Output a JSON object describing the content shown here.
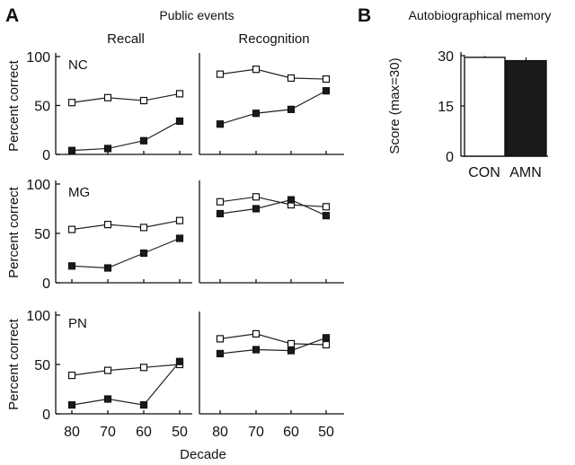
{
  "panel_a": {
    "label": "A",
    "title": "Public events",
    "col_titles": [
      "Recall",
      "Recognition"
    ],
    "ylabel": "Percent correct",
    "xlabel": "Decade"
  },
  "panel_b": {
    "label": "B",
    "title": "Autobiographical memory",
    "ylabel": "Score (max=30)"
  },
  "colors": {
    "open_marker": "#ffffff",
    "filled_marker": "#1a1a1a",
    "line": "#222222"
  },
  "chart_data": [
    {
      "type": "line",
      "id": "nc-recall",
      "row_label": "NC",
      "column": "Recall",
      "x": [
        "80",
        "70",
        "60",
        "50"
      ],
      "ylim": [
        0,
        100
      ],
      "yticks": [
        0,
        50,
        100
      ],
      "series": [
        {
          "marker": "open-square",
          "values": [
            53,
            58,
            55,
            62
          ]
        },
        {
          "marker": "filled-square",
          "values": [
            4,
            6,
            14,
            34
          ]
        }
      ]
    },
    {
      "type": "line",
      "id": "nc-recognition",
      "row_label": "",
      "column": "Recognition",
      "x": [
        "80",
        "70",
        "60",
        "50"
      ],
      "ylim": [
        0,
        100
      ],
      "series": [
        {
          "marker": "open-square",
          "values": [
            82,
            87,
            78,
            77
          ]
        },
        {
          "marker": "filled-square",
          "values": [
            31,
            42,
            46,
            65
          ]
        }
      ]
    },
    {
      "type": "line",
      "id": "mg-recall",
      "row_label": "MG",
      "column": "Recall",
      "x": [
        "80",
        "70",
        "60",
        "50"
      ],
      "ylim": [
        0,
        100
      ],
      "yticks": [
        0,
        50,
        100
      ],
      "series": [
        {
          "marker": "open-square",
          "values": [
            54,
            59,
            56,
            63
          ]
        },
        {
          "marker": "filled-square",
          "values": [
            17,
            15,
            30,
            45
          ]
        }
      ]
    },
    {
      "type": "line",
      "id": "mg-recognition",
      "row_label": "",
      "column": "Recognition",
      "x": [
        "80",
        "70",
        "60",
        "50"
      ],
      "ylim": [
        0,
        100
      ],
      "series": [
        {
          "marker": "open-square",
          "values": [
            82,
            87,
            79,
            77
          ]
        },
        {
          "marker": "filled-square",
          "values": [
            70,
            75,
            84,
            68
          ]
        }
      ]
    },
    {
      "type": "line",
      "id": "pn-recall",
      "row_label": "PN",
      "column": "Recall",
      "x": [
        "80",
        "70",
        "60",
        "50"
      ],
      "ylim": [
        0,
        100
      ],
      "yticks": [
        0,
        50,
        100
      ],
      "series": [
        {
          "marker": "open-square",
          "values": [
            39,
            44,
            47,
            50
          ]
        },
        {
          "marker": "filled-square",
          "values": [
            9,
            15,
            9,
            53
          ]
        }
      ]
    },
    {
      "type": "line",
      "id": "pn-recognition",
      "row_label": "",
      "column": "Recognition",
      "x": [
        "80",
        "70",
        "60",
        "50"
      ],
      "ylim": [
        0,
        100
      ],
      "series": [
        {
          "marker": "open-square",
          "values": [
            76,
            81,
            71,
            70
          ]
        },
        {
          "marker": "filled-square",
          "values": [
            61,
            65,
            64,
            77
          ]
        }
      ]
    },
    {
      "type": "bar",
      "id": "autobiographical-memory",
      "categories": [
        "CON",
        "AMN"
      ],
      "values": [
        29.5,
        28.5
      ],
      "error": [
        0.4,
        1.0
      ],
      "colors": [
        "#ffffff",
        "#1a1a1a"
      ],
      "ylim": [
        0,
        30
      ],
      "yticks": [
        0,
        15,
        30
      ]
    }
  ]
}
